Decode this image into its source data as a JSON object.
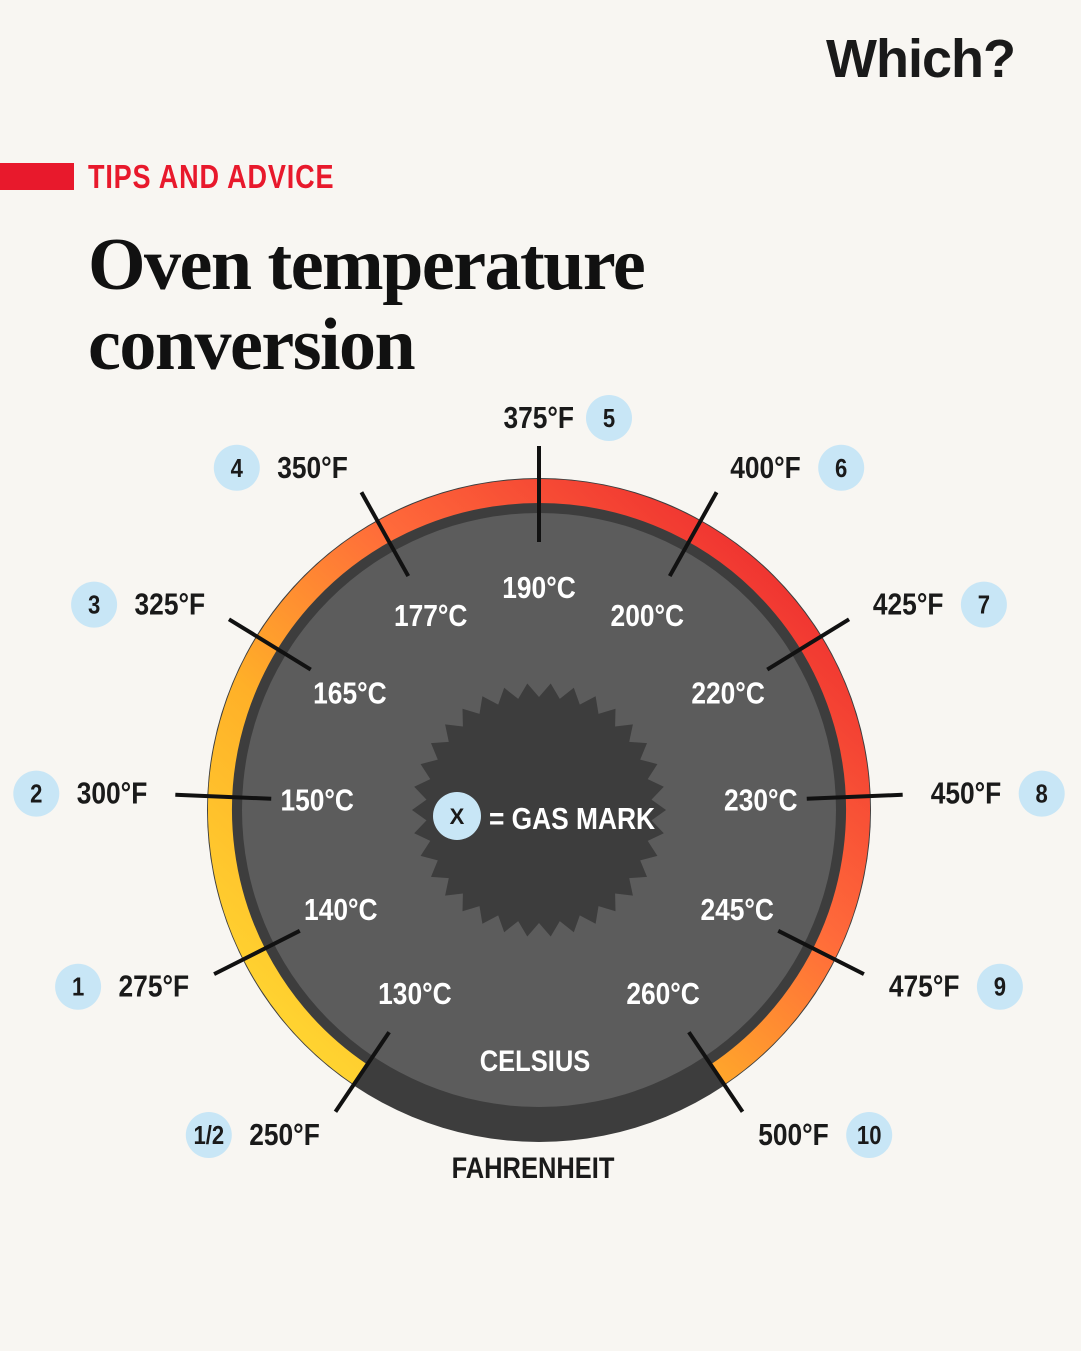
{
  "brand": {
    "name": "Which",
    "mark": "?"
  },
  "kicker": "TIPS AND ADVICE",
  "title_line1": "Oven temperature",
  "title_line2": "conversion",
  "legend": {
    "badge": "X",
    "text": "= GAS MARK"
  },
  "ring_labels": {
    "inner": "CELSIUS",
    "outer": "FAHRENHEIT"
  },
  "colors": {
    "accent_red": "#e8192c",
    "badge_fill": "#c8e6f6",
    "dial_fill": "#5c5c5c",
    "dial_rim": "#3d3d3d",
    "arc_start": "#ffd23a",
    "arc_end": "#e8192c"
  },
  "chart_data": {
    "type": "dial",
    "marks": [
      {
        "gas": "1/2",
        "f": "250°F",
        "c": "130°C"
      },
      {
        "gas": "1",
        "f": "275°F",
        "c": "140°C"
      },
      {
        "gas": "2",
        "f": "300°F",
        "c": "150°C"
      },
      {
        "gas": "3",
        "f": "325°F",
        "c": "165°C"
      },
      {
        "gas": "4",
        "f": "350°F",
        "c": "177°C"
      },
      {
        "gas": "5",
        "f": "375°F",
        "c": "190°C"
      },
      {
        "gas": "6",
        "f": "400°F",
        "c": "200°C"
      },
      {
        "gas": "7",
        "f": "425°F",
        "c": "220°C"
      },
      {
        "gas": "8",
        "f": "450°F",
        "c": "230°C"
      },
      {
        "gas": "9",
        "f": "475°F",
        "c": "245°C"
      },
      {
        "gas": "10",
        "f": "500°F",
        "c": "260°C"
      }
    ]
  }
}
